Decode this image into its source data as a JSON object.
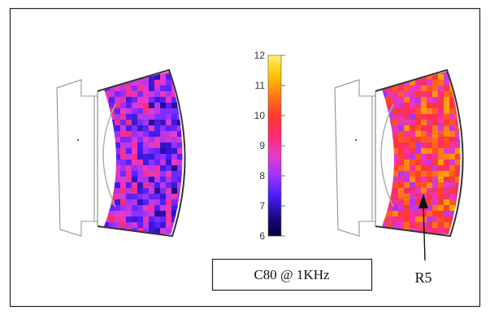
{
  "colorbar": {
    "ticks": [
      "12",
      "11",
      "10",
      "9",
      "8",
      "7",
      "6"
    ],
    "min": 6,
    "max": 12,
    "colors": [
      "#000033",
      "#1a0a8a",
      "#4b1cff",
      "#9a33ff",
      "#e83acb",
      "#ff2a6e",
      "#ff3b2a",
      "#ff7a16",
      "#ffc400",
      "#fff066"
    ]
  },
  "maps": [
    {
      "name": "left",
      "mean_level": 8.0,
      "spread": 1.2
    },
    {
      "name": "right",
      "mean_level": 9.6,
      "spread": 1.4
    }
  ],
  "caption": "C80 @ 1KHz",
  "annotation": "R5"
}
